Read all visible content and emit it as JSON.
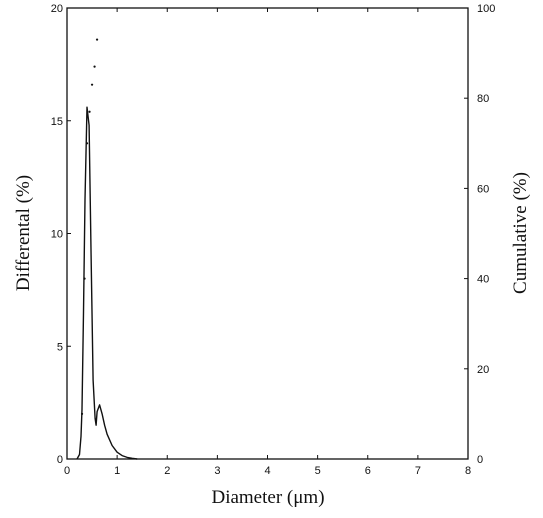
{
  "chart_data": {
    "type": "line",
    "xlabel": "Diameter  (μm)",
    "ylabel_left": "Differental  (%)",
    "ylabel_right": "Cumulative  (%)",
    "xlim": [
      0,
      8
    ],
    "ylim_left": [
      0,
      20
    ],
    "ylim_right": [
      0,
      100
    ],
    "xticks": [
      "0",
      "1",
      "2",
      "3",
      "4",
      "5",
      "6",
      "7",
      "8"
    ],
    "yticks_left": [
      "0",
      "5",
      "10",
      "15",
      "20"
    ],
    "yticks_right": [
      "0",
      "20",
      "40",
      "60",
      "80",
      "100"
    ],
    "grid": false,
    "series": [
      {
        "axis": "left",
        "style": "solid-line",
        "x": [
          0.2,
          0.25,
          0.28,
          0.3,
          0.33,
          0.36,
          0.4,
          0.44,
          0.48,
          0.52,
          0.56,
          0.58,
          0.6,
          0.65,
          0.7,
          0.75,
          0.8,
          0.9,
          1.0,
          1.1,
          1.2,
          1.3,
          1.4
        ],
        "values": [
          0.0,
          0.2,
          1.0,
          2.2,
          6.5,
          11.5,
          15.6,
          14.8,
          9.0,
          3.5,
          1.8,
          1.5,
          2.1,
          2.4,
          2.0,
          1.5,
          1.1,
          0.6,
          0.3,
          0.15,
          0.07,
          0.03,
          0.0
        ]
      },
      {
        "axis": "right",
        "style": "dotted",
        "x": [
          0.3,
          0.35,
          0.4,
          0.45,
          0.5,
          0.55,
          0.6
        ],
        "values": [
          10,
          40,
          70,
          77,
          83,
          87,
          93
        ]
      }
    ]
  }
}
